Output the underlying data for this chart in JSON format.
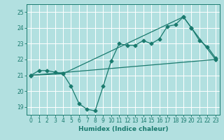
{
  "xlabel": "Humidex (Indice chaleur)",
  "background_color": "#b2e0e0",
  "grid_color": "#ffffff",
  "line_color": "#1a7a6e",
  "xlim": [
    -0.5,
    23.5
  ],
  "ylim": [
    18.5,
    25.5
  ],
  "xticks": [
    0,
    1,
    2,
    3,
    4,
    5,
    6,
    7,
    8,
    9,
    10,
    11,
    12,
    13,
    14,
    15,
    16,
    17,
    18,
    19,
    20,
    21,
    22,
    23
  ],
  "yticks": [
    19,
    20,
    21,
    22,
    23,
    24,
    25
  ],
  "line1_x": [
    0,
    1,
    2,
    3,
    4,
    5,
    6,
    7,
    8,
    9,
    10,
    11,
    12,
    13,
    14,
    15,
    16,
    17,
    18,
    19,
    20,
    21,
    22,
    23
  ],
  "line1_y": [
    21.0,
    21.3,
    21.3,
    21.2,
    21.1,
    20.3,
    19.2,
    18.85,
    18.75,
    20.3,
    21.9,
    23.0,
    22.9,
    22.9,
    23.2,
    23.0,
    23.3,
    24.1,
    24.2,
    24.7,
    24.0,
    23.2,
    22.8,
    22.1
  ],
  "line2_x": [
    0,
    23
  ],
  "line2_y": [
    21.0,
    22.0
  ],
  "line3_x": [
    0,
    4,
    19,
    20,
    23
  ],
  "line3_y": [
    21.0,
    21.1,
    24.7,
    24.0,
    22.0
  ]
}
